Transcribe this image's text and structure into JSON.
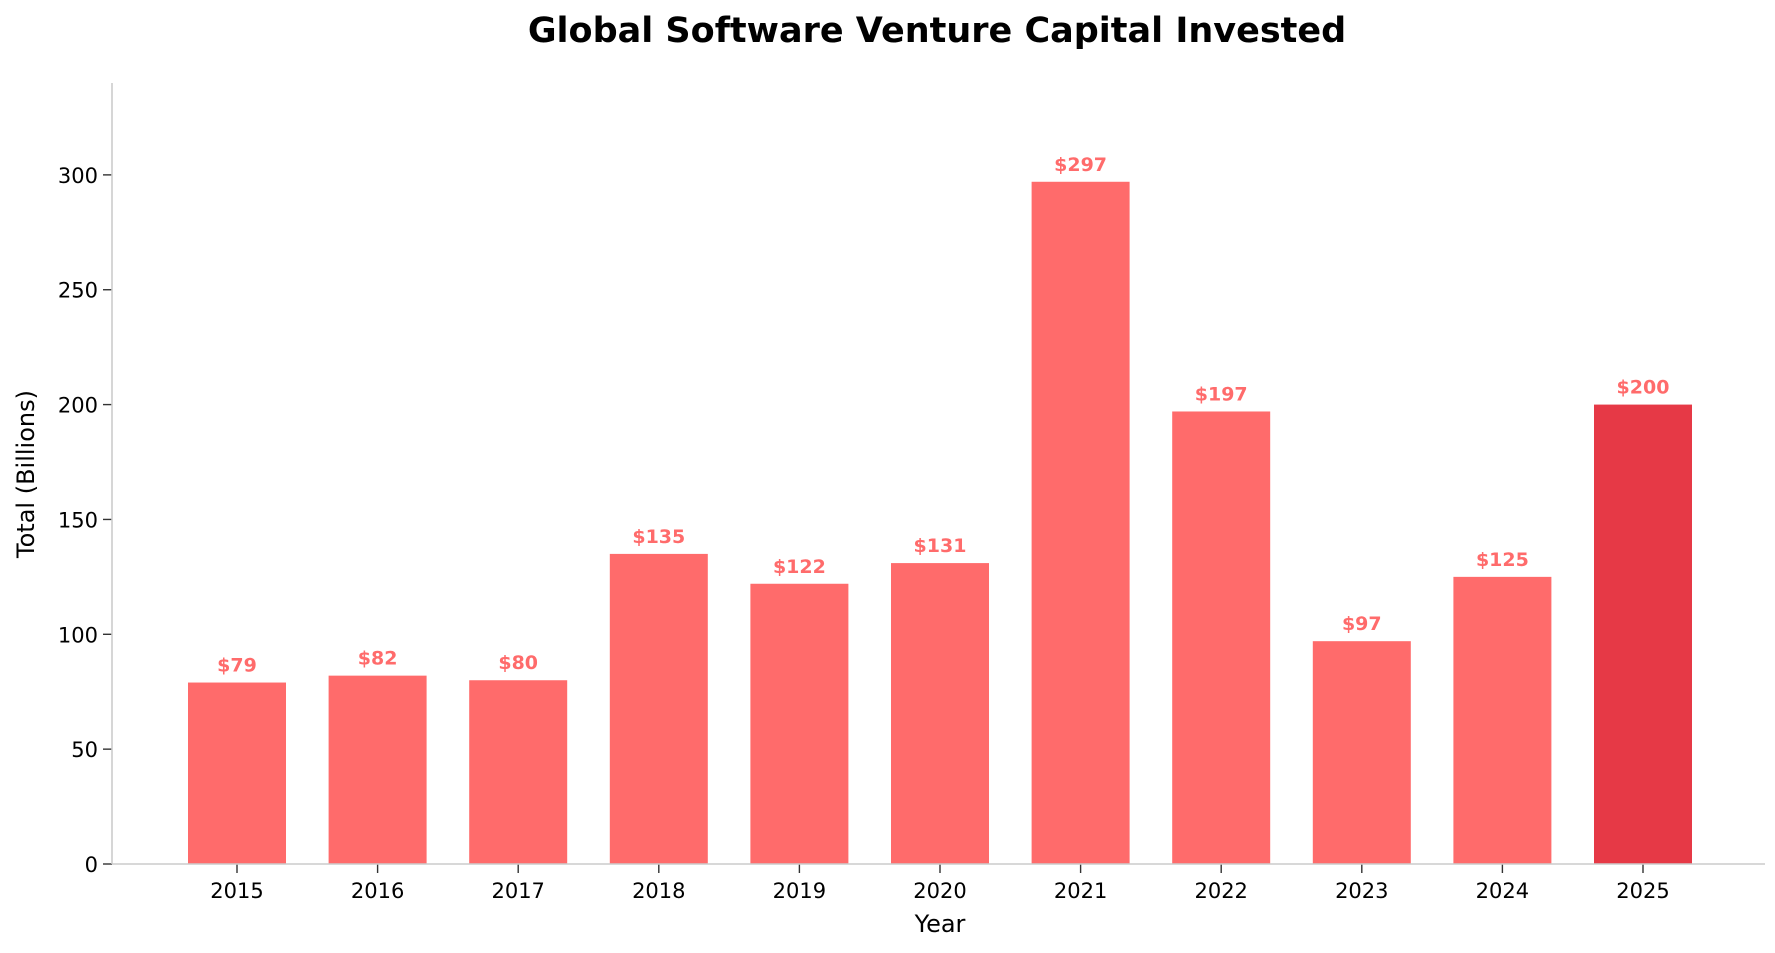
{
  "chart_data": {
    "type": "bar",
    "title": "Global Software Venture Capital Invested",
    "xlabel": "Year",
    "ylabel": "Total (Billions)",
    "categories": [
      "2015",
      "2016",
      "2017",
      "2018",
      "2019",
      "2020",
      "2021",
      "2022",
      "2023",
      "2024",
      "2025"
    ],
    "values": [
      79,
      82,
      80,
      135,
      122,
      131,
      297,
      197,
      97,
      125,
      200
    ],
    "value_labels": [
      "$79",
      "$82",
      "$80",
      "$135",
      "$122",
      "$131",
      "$297",
      "$197",
      "$97",
      "$125",
      "$200"
    ],
    "ylim": [
      0,
      340
    ],
    "yticks": [
      0,
      50,
      100,
      150,
      200,
      250,
      300
    ],
    "grid": false,
    "legend": "none",
    "colors": {
      "bar": "#ff6b6b",
      "highlight_bar": "#e63946",
      "value_label": "#ff6b6b",
      "axis": "#cccccc",
      "text": "#000000"
    },
    "highlight_category": "2025"
  }
}
